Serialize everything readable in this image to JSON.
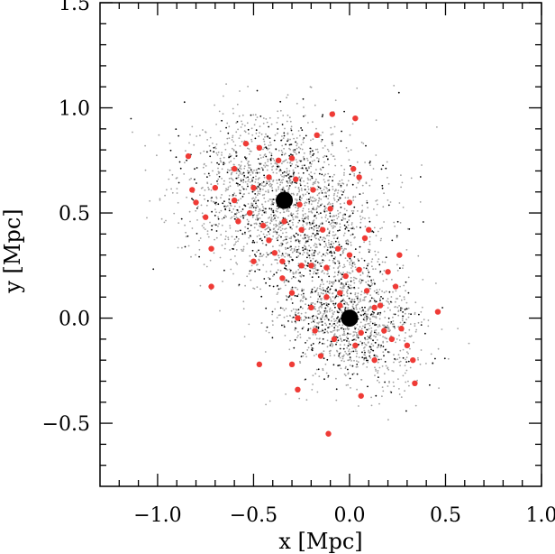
{
  "chart_data": {
    "type": "scatter",
    "title": "",
    "xlabel": "x [Mpc]",
    "ylabel": "y [Mpc]",
    "xlim": [
      -1.3,
      1.0
    ],
    "ylim": [
      -0.8,
      1.5
    ],
    "xticks": [
      {
        "value": -1.0,
        "label": "−1.0"
      },
      {
        "value": -0.5,
        "label": "−0.5"
      },
      {
        "value": 0.0,
        "label": "0.0"
      },
      {
        "value": 0.5,
        "label": "0.5"
      },
      {
        "value": 1.0,
        "label": "1.0"
      }
    ],
    "yticks": [
      {
        "value": -0.5,
        "label": "−0.5"
      },
      {
        "value": 0.0,
        "label": "0.0"
      },
      {
        "value": 0.5,
        "label": "0.5"
      },
      {
        "value": 1.0,
        "label": "1.0"
      },
      {
        "value": 1.5,
        "label": "1.5"
      }
    ],
    "grid": false,
    "colors": {
      "gray_points": "#a0a0a0",
      "black_points": "#000000",
      "red_points": "#ef3b36",
      "centers": "#000000"
    },
    "centers": [
      {
        "x": -0.34,
        "y": 0.56
      },
      {
        "x": 0.0,
        "y": 0.0
      }
    ],
    "red_points": [
      {
        "x": -0.84,
        "y": 0.77
      },
      {
        "x": -0.82,
        "y": 0.61
      },
      {
        "x": -0.8,
        "y": 0.55
      },
      {
        "x": -0.75,
        "y": 0.48
      },
      {
        "x": -0.7,
        "y": 0.62
      },
      {
        "x": -0.72,
        "y": 0.33
      },
      {
        "x": -0.72,
        "y": 0.15
      },
      {
        "x": -0.6,
        "y": 0.56
      },
      {
        "x": -0.6,
        "y": 0.71
      },
      {
        "x": -0.58,
        "y": 0.46
      },
      {
        "x": -0.54,
        "y": 0.83
      },
      {
        "x": -0.52,
        "y": 0.5
      },
      {
        "x": -0.5,
        "y": 0.27
      },
      {
        "x": -0.5,
        "y": 0.62
      },
      {
        "x": -0.47,
        "y": 0.81
      },
      {
        "x": -0.45,
        "y": 0.44
      },
      {
        "x": -0.42,
        "y": 0.67
      },
      {
        "x": -0.42,
        "y": 0.37
      },
      {
        "x": -0.39,
        "y": 0.31
      },
      {
        "x": -0.37,
        "y": 0.75
      },
      {
        "x": -0.35,
        "y": 0.27
      },
      {
        "x": -0.34,
        "y": 0.46
      },
      {
        "x": -0.3,
        "y": 0.76
      },
      {
        "x": -0.28,
        "y": 0.66
      },
      {
        "x": -0.26,
        "y": 0.54
      },
      {
        "x": -0.25,
        "y": 0.42
      },
      {
        "x": -0.25,
        "y": 0.25
      },
      {
        "x": -0.2,
        "y": 0.25
      },
      {
        "x": -0.19,
        "y": 0.61
      },
      {
        "x": -0.17,
        "y": 0.87
      },
      {
        "x": -0.14,
        "y": 0.42
      },
      {
        "x": -0.12,
        "y": 0.24
      },
      {
        "x": -0.1,
        "y": 0.52
      },
      {
        "x": -0.09,
        "y": 0.97
      },
      {
        "x": -0.06,
        "y": 0.33
      },
      {
        "x": -0.05,
        "y": 0.12
      },
      {
        "x": -0.02,
        "y": 0.2
      },
      {
        "x": 0.0,
        "y": 0.55
      },
      {
        "x": 0.02,
        "y": 0.71
      },
      {
        "x": 0.03,
        "y": 0.95
      },
      {
        "x": 0.05,
        "y": 0.67
      },
      {
        "x": 0.08,
        "y": 0.38
      },
      {
        "x": 0.1,
        "y": 0.42
      },
      {
        "x": 0.05,
        "y": 0.23
      },
      {
        "x": -0.3,
        "y": 0.12
      },
      {
        "x": -0.27,
        "y": 0.0
      },
      {
        "x": -0.2,
        "y": 0.05
      },
      {
        "x": -0.18,
        "y": -0.06
      },
      {
        "x": -0.15,
        "y": -0.18
      },
      {
        "x": -0.12,
        "y": 0.1
      },
      {
        "x": -0.08,
        "y": -0.1
      },
      {
        "x": -0.05,
        "y": 0.06
      },
      {
        "x": 0.03,
        "y": -0.13
      },
      {
        "x": 0.06,
        "y": -0.07
      },
      {
        "x": 0.09,
        "y": 0.13
      },
      {
        "x": 0.13,
        "y": -0.2
      },
      {
        "x": 0.16,
        "y": 0.06
      },
      {
        "x": 0.18,
        "y": -0.06
      },
      {
        "x": 0.2,
        "y": 0.22
      },
      {
        "x": 0.22,
        "y": -0.1
      },
      {
        "x": 0.24,
        "y": 0.15
      },
      {
        "x": 0.26,
        "y": 0.3
      },
      {
        "x": 0.27,
        "y": -0.05
      },
      {
        "x": 0.3,
        "y": -0.13
      },
      {
        "x": 0.33,
        "y": -0.2
      },
      {
        "x": 0.34,
        "y": -0.31
      },
      {
        "x": 0.46,
        "y": 0.03
      },
      {
        "x": -0.47,
        "y": -0.22
      },
      {
        "x": -0.27,
        "y": -0.34
      },
      {
        "x": -0.11,
        "y": -0.55
      },
      {
        "x": 0.06,
        "y": -0.37
      },
      {
        "x": -0.3,
        "y": -0.22
      },
      {
        "x": 0.13,
        "y": 0.05
      },
      {
        "x": -0.35,
        "y": 0.19
      },
      {
        "x": 0.0,
        "y": 0.3
      }
    ]
  }
}
